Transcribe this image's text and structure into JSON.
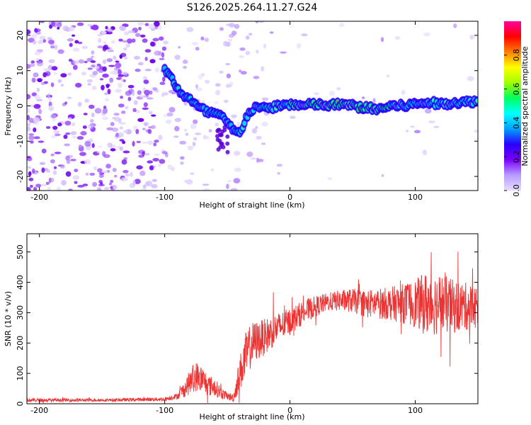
{
  "title": "S126.2025.264.11.27.G24",
  "chart_data": [
    {
      "type": "heatmap",
      "xlabel": "Height of straight line (km)",
      "ylabel": "Frequency (Hz)",
      "xlim": [
        -210,
        150
      ],
      "ylim": [
        -24,
        24
      ],
      "xticks": [
        -200,
        -100,
        0,
        100
      ],
      "yticks": [
        -20,
        -10,
        0,
        10,
        20
      ],
      "colorbar": {
        "label": "Normalized spectral amplitude",
        "range": [
          0,
          1
        ],
        "ticks": [
          "0.0",
          "0.2",
          "0.4",
          "0.6",
          "0.8"
        ],
        "stops": [
          "#e8dcff",
          "#b89cff",
          "#7a00ff",
          "#2a00ff",
          "#00a0ff",
          "#00ffff",
          "#00ff60",
          "#a0ff00",
          "#ffff00",
          "#ff8000",
          "#ff0000",
          "#ff00a0"
        ]
      },
      "ridge": {
        "x": [
          -100,
          -95,
          -90,
          -85,
          -80,
          -75,
          -70,
          -65,
          -60,
          -55,
          -50,
          -45,
          -40,
          -35,
          -30,
          -25,
          -20,
          -10,
          0,
          10,
          20,
          30,
          40,
          50,
          60,
          70,
          80,
          90,
          100,
          110,
          120,
          130,
          140,
          150
        ],
        "y": [
          10,
          8,
          5,
          3,
          2,
          0,
          -1,
          -2,
          -2,
          -3,
          -5,
          -7,
          -8,
          -3,
          -1,
          0,
          -1,
          0,
          0.5,
          0,
          0.5,
          0,
          0.5,
          0,
          -0.5,
          -1,
          0,
          0,
          0.5,
          1,
          0.5,
          1,
          1,
          1.5
        ]
      }
    },
    {
      "type": "line",
      "xlabel": "Height of straight line (km)",
      "ylabel": "SNR (10 * v/v)",
      "xlim": [
        -210,
        150
      ],
      "ylim": [
        0,
        560
      ],
      "xticks": [
        -200,
        -100,
        0,
        100
      ],
      "yticks": [
        0,
        100,
        200,
        300,
        400,
        500
      ],
      "color": "#ee3333",
      "envelope": {
        "x": [
          -210,
          -150,
          -100,
          -90,
          -85,
          -80,
          -75,
          -70,
          -65,
          -60,
          -55,
          -50,
          -45,
          -40,
          -35,
          -30,
          -20,
          -10,
          0,
          10,
          20,
          30,
          40,
          50,
          60,
          70,
          80,
          90,
          100,
          110,
          120,
          130,
          140,
          150
        ],
        "mean": [
          12,
          12,
          15,
          25,
          45,
          70,
          90,
          80,
          60,
          55,
          35,
          25,
          20,
          100,
          160,
          200,
          220,
          250,
          270,
          300,
          320,
          335,
          340,
          340,
          330,
          330,
          330,
          330,
          330,
          330,
          330,
          320,
          320,
          320
        ],
        "amp": [
          6,
          5,
          6,
          10,
          25,
          40,
          50,
          45,
          35,
          30,
          20,
          12,
          15,
          60,
          80,
          70,
          60,
          50,
          45,
          40,
          35,
          30,
          35,
          40,
          45,
          50,
          55,
          65,
          80,
          110,
          100,
          90,
          80,
          70
        ]
      }
    }
  ]
}
